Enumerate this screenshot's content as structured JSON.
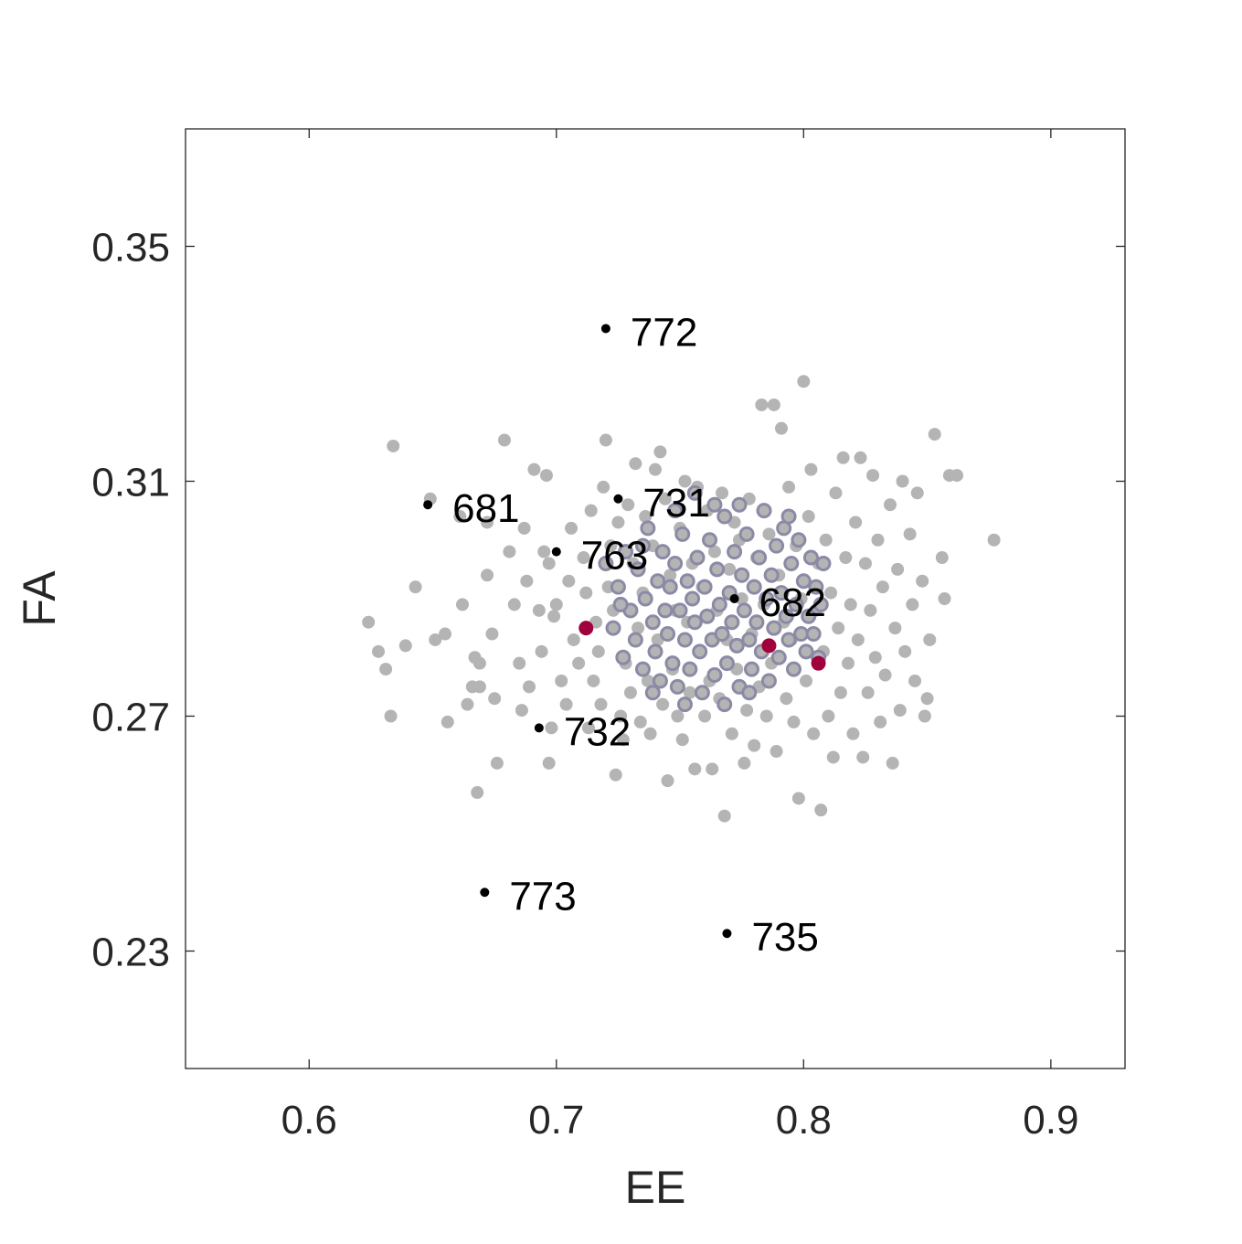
{
  "chart_data": {
    "type": "scatter",
    "xlabel": "EE",
    "ylabel": "FA",
    "xlim": [
      0.55,
      0.93
    ],
    "ylim": [
      0.21,
      0.37
    ],
    "xticks": [
      0.6,
      0.7,
      0.8,
      0.9
    ],
    "xtick_labels": [
      "0.6",
      "0.7",
      "0.8",
      "0.9"
    ],
    "yticks": [
      0.23,
      0.27,
      0.31,
      0.35
    ],
    "ytick_labels": [
      "0.23",
      "0.27",
      "0.31",
      "0.35"
    ],
    "grid": false,
    "box": true,
    "colors": {
      "background_points": "#b4b4b4",
      "core_points_fill": "#b4b4b4",
      "core_points_edge": "#8a8aa6",
      "highlight_points": "#a0003c",
      "labeled_points": "#000000",
      "axes": "#262626"
    },
    "series": [
      {
        "style": "background",
        "points": [
          [
            0.624,
            0.286
          ],
          [
            0.628,
            0.281
          ],
          [
            0.631,
            0.278
          ],
          [
            0.633,
            0.27
          ],
          [
            0.634,
            0.316
          ],
          [
            0.639,
            0.282
          ],
          [
            0.643,
            0.292
          ],
          [
            0.649,
            0.307
          ],
          [
            0.651,
            0.283
          ],
          [
            0.655,
            0.284
          ],
          [
            0.656,
            0.269
          ],
          [
            0.661,
            0.304
          ],
          [
            0.662,
            0.289
          ],
          [
            0.664,
            0.272
          ],
          [
            0.666,
            0.275
          ],
          [
            0.667,
            0.28
          ],
          [
            0.668,
            0.257
          ],
          [
            0.669,
            0.279
          ],
          [
            0.669,
            0.275
          ],
          [
            0.672,
            0.294
          ],
          [
            0.672,
            0.303
          ],
          [
            0.674,
            0.284
          ],
          [
            0.675,
            0.273
          ],
          [
            0.676,
            0.262
          ],
          [
            0.679,
            0.317
          ],
          [
            0.681,
            0.298
          ],
          [
            0.683,
            0.289
          ],
          [
            0.685,
            0.279
          ],
          [
            0.686,
            0.271
          ],
          [
            0.687,
            0.302
          ],
          [
            0.688,
            0.293
          ],
          [
            0.689,
            0.275
          ],
          [
            0.691,
            0.312
          ],
          [
            0.693,
            0.288
          ],
          [
            0.694,
            0.281
          ],
          [
            0.695,
            0.298
          ],
          [
            0.696,
            0.311
          ],
          [
            0.697,
            0.262
          ],
          [
            0.697,
            0.296
          ],
          [
            0.698,
            0.268
          ],
          [
            0.699,
            0.287
          ],
          [
            0.7,
            0.289
          ],
          [
            0.702,
            0.276
          ],
          [
            0.704,
            0.272
          ],
          [
            0.705,
            0.293
          ],
          [
            0.706,
            0.302
          ],
          [
            0.707,
            0.283
          ],
          [
            0.709,
            0.279
          ],
          [
            0.711,
            0.297
          ],
          [
            0.712,
            0.291
          ],
          [
            0.713,
            0.268
          ],
          [
            0.714,
            0.305
          ],
          [
            0.715,
            0.276
          ],
          [
            0.716,
            0.286
          ],
          [
            0.717,
            0.281
          ],
          [
            0.718,
            0.272
          ],
          [
            0.719,
            0.309
          ],
          [
            0.72,
            0.317
          ],
          [
            0.721,
            0.292
          ],
          [
            0.722,
            0.299
          ],
          [
            0.723,
            0.288
          ],
          [
            0.724,
            0.26
          ],
          [
            0.725,
            0.303
          ],
          [
            0.726,
            0.27
          ],
          [
            0.727,
            0.266
          ],
          [
            0.728,
            0.279
          ],
          [
            0.729,
            0.306
          ],
          [
            0.73,
            0.274
          ],
          [
            0.731,
            0.296
          ],
          [
            0.732,
            0.313
          ],
          [
            0.733,
            0.285
          ],
          [
            0.734,
            0.269
          ],
          [
            0.735,
            0.291
          ],
          [
            0.736,
            0.304
          ],
          [
            0.737,
            0.276
          ],
          [
            0.738,
            0.267
          ],
          [
            0.739,
            0.299
          ],
          [
            0.74,
            0.312
          ],
          [
            0.741,
            0.283
          ],
          [
            0.742,
            0.315
          ],
          [
            0.743,
            0.272
          ],
          [
            0.744,
            0.307
          ],
          [
            0.745,
            0.259
          ],
          [
            0.746,
            0.294
          ],
          [
            0.747,
            0.278
          ],
          [
            0.748,
            0.288
          ],
          [
            0.749,
            0.27
          ],
          [
            0.75,
            0.302
          ],
          [
            0.751,
            0.266
          ],
          [
            0.752,
            0.31
          ],
          [
            0.753,
            0.286
          ],
          [
            0.754,
            0.274
          ],
          [
            0.755,
            0.296
          ],
          [
            0.756,
            0.261
          ],
          [
            0.757,
            0.309
          ],
          [
            0.758,
            0.281
          ],
          [
            0.759,
            0.292
          ],
          [
            0.76,
            0.27
          ],
          [
            0.761,
            0.305
          ],
          [
            0.762,
            0.276
          ],
          [
            0.763,
            0.261
          ],
          [
            0.764,
            0.298
          ],
          [
            0.765,
            0.288
          ],
          [
            0.766,
            0.273
          ],
          [
            0.767,
            0.308
          ],
          [
            0.768,
            0.253
          ],
          [
            0.769,
            0.283
          ],
          [
            0.77,
            0.295
          ],
          [
            0.771,
            0.267
          ],
          [
            0.772,
            0.303
          ],
          [
            0.773,
            0.278
          ],
          [
            0.774,
            0.3
          ],
          [
            0.775,
            0.29
          ],
          [
            0.776,
            0.262
          ],
          [
            0.777,
            0.271
          ],
          [
            0.778,
            0.307
          ],
          [
            0.779,
            0.284
          ],
          [
            0.78,
            0.265
          ],
          [
            0.781,
            0.297
          ],
          [
            0.782,
            0.275
          ],
          [
            0.783,
            0.323
          ],
          [
            0.784,
            0.289
          ],
          [
            0.785,
            0.27
          ],
          [
            0.786,
            0.301
          ],
          [
            0.787,
            0.279
          ],
          [
            0.788,
            0.323
          ],
          [
            0.789,
            0.264
          ],
          [
            0.79,
            0.294
          ],
          [
            0.791,
            0.319
          ],
          [
            0.792,
            0.286
          ],
          [
            0.793,
            0.273
          ],
          [
            0.794,
            0.309
          ],
          [
            0.795,
            0.283
          ],
          [
            0.796,
            0.269
          ],
          [
            0.797,
            0.299
          ],
          [
            0.798,
            0.256
          ],
          [
            0.799,
            0.29
          ],
          [
            0.8,
            0.327
          ],
          [
            0.801,
            0.276
          ],
          [
            0.802,
            0.304
          ],
          [
            0.803,
            0.312
          ],
          [
            0.804,
            0.267
          ],
          [
            0.805,
            0.288
          ],
          [
            0.806,
            0.296
          ],
          [
            0.807,
            0.254
          ],
          [
            0.808,
            0.281
          ],
          [
            0.809,
            0.3
          ],
          [
            0.81,
            0.27
          ],
          [
            0.811,
            0.291
          ],
          [
            0.812,
            0.263
          ],
          [
            0.813,
            0.308
          ],
          [
            0.814,
            0.285
          ],
          [
            0.815,
            0.274
          ],
          [
            0.816,
            0.314
          ],
          [
            0.817,
            0.297
          ],
          [
            0.818,
            0.279
          ],
          [
            0.819,
            0.289
          ],
          [
            0.82,
            0.267
          ],
          [
            0.821,
            0.303
          ],
          [
            0.822,
            0.283
          ],
          [
            0.823,
            0.314
          ],
          [
            0.824,
            0.263
          ],
          [
            0.825,
            0.296
          ],
          [
            0.826,
            0.274
          ],
          [
            0.827,
            0.288
          ],
          [
            0.828,
            0.311
          ],
          [
            0.829,
            0.28
          ],
          [
            0.83,
            0.3
          ],
          [
            0.831,
            0.269
          ],
          [
            0.832,
            0.292
          ],
          [
            0.833,
            0.277
          ],
          [
            0.835,
            0.306
          ],
          [
            0.836,
            0.262
          ],
          [
            0.837,
            0.285
          ],
          [
            0.838,
            0.295
          ],
          [
            0.839,
            0.271
          ],
          [
            0.84,
            0.31
          ],
          [
            0.841,
            0.281
          ],
          [
            0.843,
            0.301
          ],
          [
            0.844,
            0.289
          ],
          [
            0.845,
            0.276
          ],
          [
            0.846,
            0.308
          ],
          [
            0.848,
            0.293
          ],
          [
            0.849,
            0.27
          ],
          [
            0.85,
            0.273
          ],
          [
            0.851,
            0.283
          ],
          [
            0.853,
            0.318
          ],
          [
            0.856,
            0.297
          ],
          [
            0.857,
            0.29
          ],
          [
            0.859,
            0.311
          ],
          [
            0.862,
            0.311
          ],
          [
            0.877,
            0.3
          ]
        ]
      },
      {
        "style": "core",
        "points": [
          [
            0.72,
            0.296
          ],
          [
            0.723,
            0.285
          ],
          [
            0.725,
            0.292
          ],
          [
            0.727,
            0.28
          ],
          [
            0.728,
            0.298
          ],
          [
            0.73,
            0.288
          ],
          [
            0.732,
            0.283
          ],
          [
            0.733,
            0.295
          ],
          [
            0.735,
            0.278
          ],
          [
            0.736,
            0.29
          ],
          [
            0.737,
            0.302
          ],
          [
            0.739,
            0.286
          ],
          [
            0.74,
            0.281
          ],
          [
            0.741,
            0.293
          ],
          [
            0.742,
            0.276
          ],
          [
            0.743,
            0.298
          ],
          [
            0.744,
            0.288
          ],
          [
            0.745,
            0.284
          ],
          [
            0.746,
            0.292
          ],
          [
            0.747,
            0.279
          ],
          [
            0.748,
            0.296
          ],
          [
            0.749,
            0.275
          ],
          [
            0.75,
            0.288
          ],
          [
            0.751,
            0.301
          ],
          [
            0.752,
            0.283
          ],
          [
            0.753,
            0.293
          ],
          [
            0.754,
            0.278
          ],
          [
            0.755,
            0.29
          ],
          [
            0.756,
            0.286
          ],
          [
            0.757,
            0.297
          ],
          [
            0.758,
            0.281
          ],
          [
            0.759,
            0.274
          ],
          [
            0.76,
            0.292
          ],
          [
            0.761,
            0.287
          ],
          [
            0.762,
            0.3
          ],
          [
            0.763,
            0.283
          ],
          [
            0.764,
            0.277
          ],
          [
            0.765,
            0.295
          ],
          [
            0.766,
            0.289
          ],
          [
            0.767,
            0.284
          ],
          [
            0.768,
            0.304
          ],
          [
            0.769,
            0.279
          ],
          [
            0.77,
            0.291
          ],
          [
            0.771,
            0.286
          ],
          [
            0.772,
            0.298
          ],
          [
            0.773,
            0.282
          ],
          [
            0.774,
            0.275
          ],
          [
            0.775,
            0.294
          ],
          [
            0.776,
            0.288
          ],
          [
            0.777,
            0.301
          ],
          [
            0.778,
            0.283
          ],
          [
            0.779,
            0.278
          ],
          [
            0.78,
            0.292
          ],
          [
            0.781,
            0.286
          ],
          [
            0.782,
            0.297
          ],
          [
            0.783,
            0.281
          ],
          [
            0.784,
            0.305
          ],
          [
            0.785,
            0.29
          ],
          [
            0.786,
            0.276
          ],
          [
            0.787,
            0.294
          ],
          [
            0.788,
            0.285
          ],
          [
            0.789,
            0.299
          ],
          [
            0.79,
            0.28
          ],
          [
            0.791,
            0.291
          ],
          [
            0.792,
            0.302
          ],
          [
            0.793,
            0.287
          ],
          [
            0.794,
            0.283
          ],
          [
            0.795,
            0.296
          ],
          [
            0.796,
            0.278
          ],
          [
            0.797,
            0.289
          ],
          [
            0.798,
            0.3
          ],
          [
            0.799,
            0.284
          ],
          [
            0.8,
            0.293
          ],
          [
            0.801,
            0.281
          ],
          [
            0.802,
            0.287
          ],
          [
            0.803,
            0.297
          ],
          [
            0.804,
            0.284
          ],
          [
            0.805,
            0.292
          ],
          [
            0.806,
            0.28
          ],
          [
            0.807,
            0.289
          ],
          [
            0.808,
            0.296
          ],
          [
            0.748,
            0.305
          ],
          [
            0.756,
            0.308
          ],
          [
            0.735,
            0.299
          ],
          [
            0.726,
            0.289
          ],
          [
            0.739,
            0.274
          ],
          [
            0.752,
            0.272
          ],
          [
            0.768,
            0.272
          ],
          [
            0.778,
            0.274
          ],
          [
            0.764,
            0.306
          ],
          [
            0.774,
            0.306
          ],
          [
            0.794,
            0.304
          ]
        ]
      },
      {
        "style": "highlight",
        "points": [
          [
            0.712,
            0.285
          ],
          [
            0.786,
            0.282
          ],
          [
            0.806,
            0.279
          ]
        ]
      },
      {
        "style": "labeled",
        "points": [
          {
            "x": 0.72,
            "y": 0.336,
            "label": "772"
          },
          {
            "x": 0.648,
            "y": 0.306,
            "label": "681"
          },
          {
            "x": 0.725,
            "y": 0.307,
            "label": "731"
          },
          {
            "x": 0.7,
            "y": 0.298,
            "label": "763"
          },
          {
            "x": 0.772,
            "y": 0.29,
            "label": "682"
          },
          {
            "x": 0.693,
            "y": 0.268,
            "label": "732"
          },
          {
            "x": 0.671,
            "y": 0.24,
            "label": "773"
          },
          {
            "x": 0.769,
            "y": 0.233,
            "label": "735"
          }
        ]
      }
    ]
  }
}
